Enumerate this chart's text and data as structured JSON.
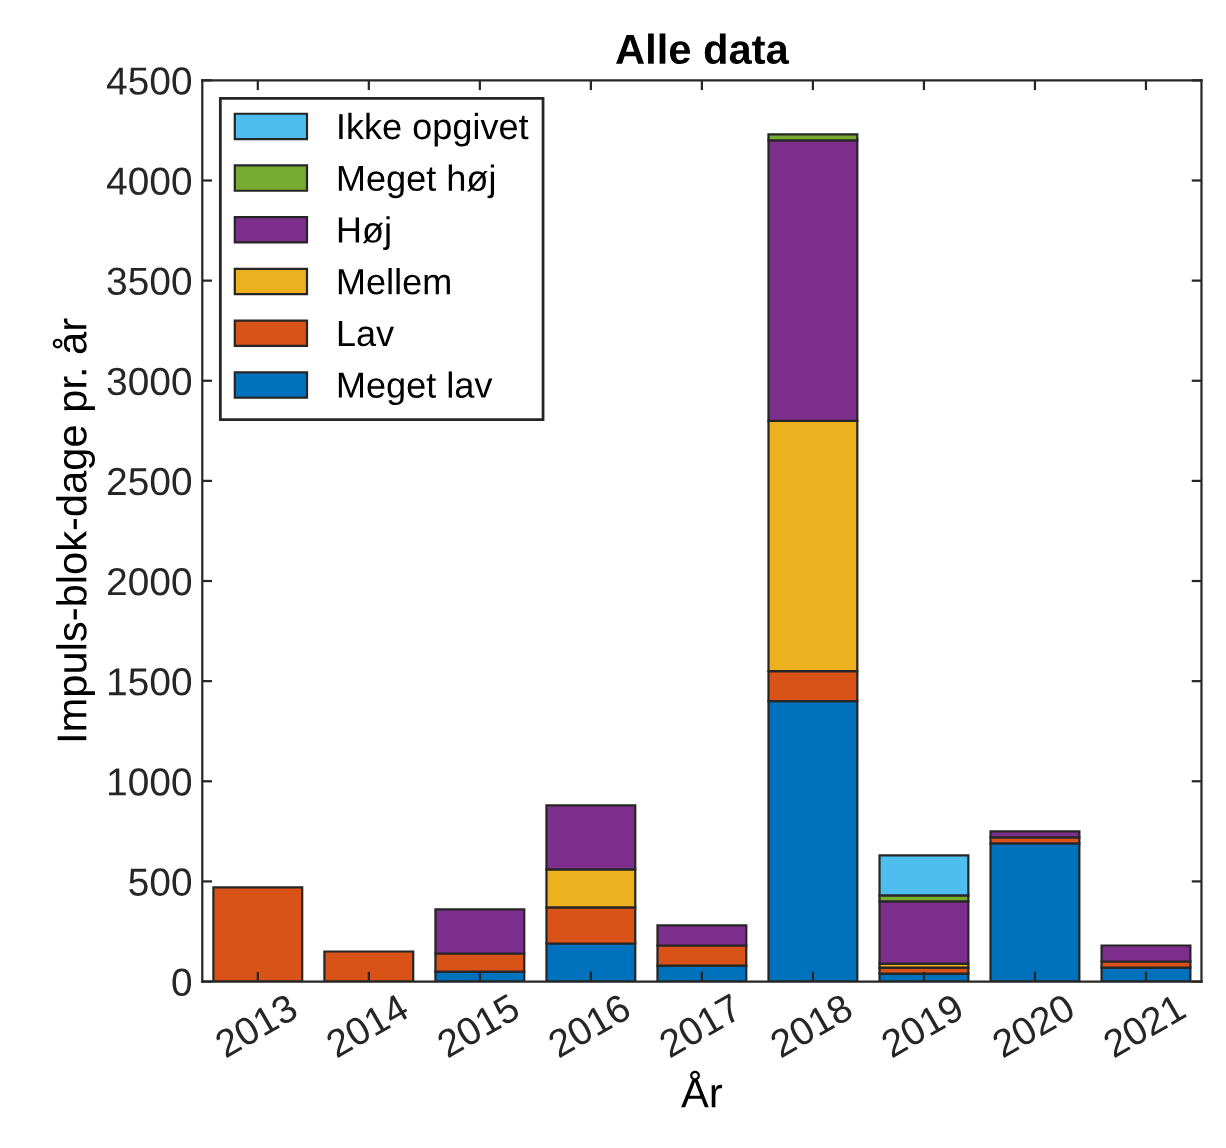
{
  "chart_data": {
    "type": "bar",
    "stacked": true,
    "title": "Alle data",
    "xlabel": "År",
    "ylabel": "Impuls-blok-dage pr. år",
    "categories": [
      "2013",
      "2014",
      "2015",
      "2016",
      "2017",
      "2018",
      "2019",
      "2020",
      "2021"
    ],
    "series": [
      {
        "name": "Meget lav",
        "color": "#0072bd",
        "values": [
          null,
          null,
          50,
          190,
          80,
          1400,
          40,
          690,
          70
        ]
      },
      {
        "name": "Lav",
        "color": "#d95319",
        "values": [
          470,
          150,
          90,
          180,
          100,
          150,
          30,
          30,
          30
        ]
      },
      {
        "name": "Mellem",
        "color": "#edb120",
        "values": [
          null,
          null,
          null,
          190,
          null,
          1250,
          20,
          null,
          null
        ]
      },
      {
        "name": "Høj",
        "color": "#7e2f8e",
        "values": [
          null,
          null,
          220,
          320,
          100,
          1400,
          310,
          30,
          80
        ]
      },
      {
        "name": "Meget høj",
        "color": "#77ac30",
        "values": [
          null,
          null,
          null,
          null,
          null,
          30,
          30,
          null,
          null
        ]
      },
      {
        "name": "Ikke opgivet",
        "color": "#4dbeee",
        "values": [
          null,
          null,
          null,
          null,
          null,
          null,
          200,
          null,
          null
        ]
      }
    ],
    "ylim": [
      0,
      4500
    ],
    "yticks": [
      0,
      500,
      1000,
      1500,
      2000,
      2500,
      3000,
      3500,
      4000,
      4500
    ],
    "grid": false,
    "legend": "top left"
  }
}
